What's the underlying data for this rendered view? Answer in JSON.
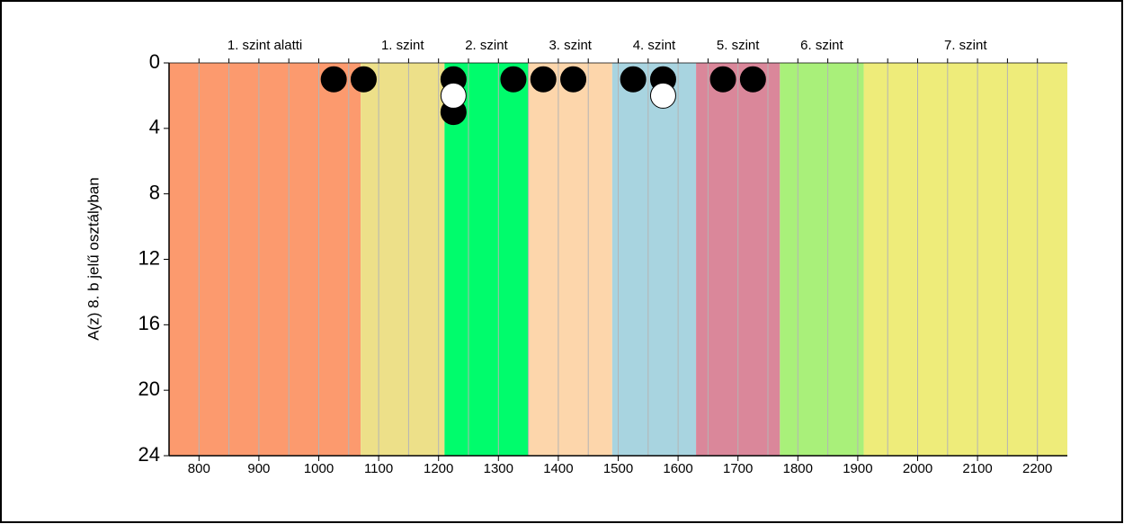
{
  "chart_data": {
    "type": "scatter",
    "y_label": "A(z) 8. b jelű osztályban",
    "xlim": [
      750,
      2250
    ],
    "ylim": [
      0,
      24
    ],
    "y_inverted": true,
    "xticks": [
      800,
      900,
      1000,
      1100,
      1200,
      1300,
      1400,
      1500,
      1600,
      1700,
      1800,
      1900,
      2000,
      2100,
      2200
    ],
    "xgrid": [
      800,
      850,
      900,
      950,
      1000,
      1050,
      1100,
      1150,
      1200,
      1250,
      1300,
      1350,
      1400,
      1450,
      1500,
      1550,
      1600,
      1650,
      1700,
      1750,
      1800,
      1850,
      1900,
      1950,
      2000,
      2050,
      2100,
      2150,
      2200
    ],
    "yticks": [
      0,
      4,
      8,
      12,
      16,
      20,
      24
    ],
    "bands": [
      {
        "label": "1. szint alatti",
        "from": 750,
        "to": 1070,
        "color": "#fc9a6e"
      },
      {
        "label": "1. szint",
        "from": 1070,
        "to": 1210,
        "color": "#ede089"
      },
      {
        "label": "2. szint",
        "from": 1210,
        "to": 1350,
        "color": "#00fc6c"
      },
      {
        "label": "3. szint",
        "from": 1350,
        "to": 1490,
        "color": "#fdd6ab"
      },
      {
        "label": "4. szint",
        "from": 1490,
        "to": 1630,
        "color": "#a8d4e0"
      },
      {
        "label": "5. szint",
        "from": 1630,
        "to": 1770,
        "color": "#da879a"
      },
      {
        "label": "6. szint",
        "from": 1770,
        "to": 1910,
        "color": "#a9f07a"
      },
      {
        "label": "7. szint",
        "from": 1910,
        "to": 2250,
        "color": "#eeec7a"
      }
    ],
    "series": [
      {
        "color": "#000000",
        "x": [
          1025,
          1075,
          1225,
          1225,
          1325,
          1375,
          1425,
          1525,
          1575,
          1675,
          1725
        ],
        "values": [
          1,
          1,
          1,
          3,
          1,
          1,
          1,
          1,
          1,
          1,
          1
        ]
      },
      {
        "color": "#ffffff",
        "x": [
          1225,
          1575
        ],
        "values": [
          2,
          2
        ]
      }
    ]
  }
}
